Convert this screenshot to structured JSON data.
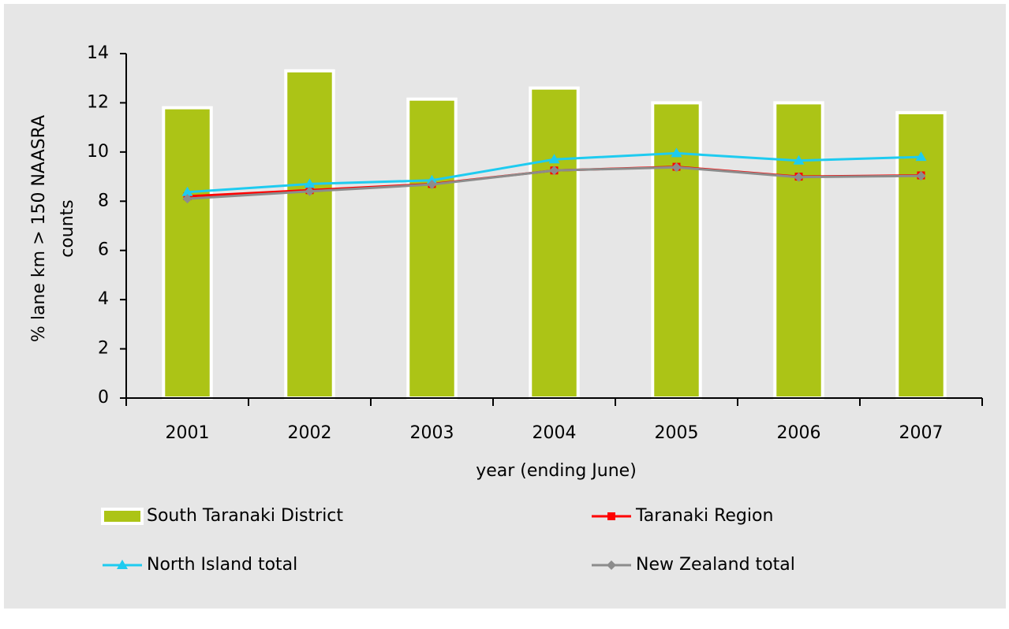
{
  "chart_data": {
    "type": "bar-line",
    "x_label": "year (ending June)",
    "y_label": [
      "% lane km > 150 NAASRA",
      "counts"
    ],
    "categories": [
      "2001",
      "2002",
      "2003",
      "2004",
      "2005",
      "2006",
      "2007"
    ],
    "series": [
      {
        "name": "South Taranaki District",
        "type": "bar",
        "color": "#acc416",
        "values": [
          11.8,
          13.3,
          12.15,
          12.6,
          12.0,
          12.0,
          11.6
        ]
      },
      {
        "name": "Taranaki Region",
        "type": "line",
        "marker": "square",
        "color": "#ff0000",
        "values": [
          8.2,
          8.45,
          8.7,
          9.25,
          9.4,
          9.0,
          9.05
        ]
      },
      {
        "name": "North Island total",
        "type": "line",
        "marker": "triangle",
        "color": "#1ecbf0",
        "values": [
          8.37,
          8.7,
          8.85,
          9.7,
          9.95,
          9.65,
          9.8
        ]
      },
      {
        "name": "New Zealand total",
        "type": "line",
        "marker": "diamond",
        "color": "#8c8c8c",
        "values": [
          8.1,
          8.4,
          8.68,
          9.25,
          9.38,
          8.98,
          9.03
        ]
      }
    ],
    "ylim": [
      0,
      14
    ],
    "yticks": [
      0,
      2,
      4,
      6,
      8,
      10,
      12,
      14
    ]
  }
}
